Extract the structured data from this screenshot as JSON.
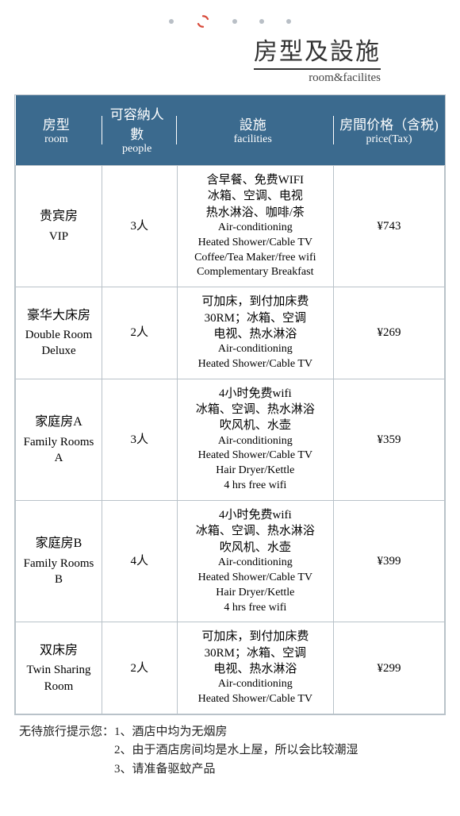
{
  "colors": {
    "header_bg": "#3b6a8e",
    "border": "#b9c2c9",
    "dot": "#b9bfc6",
    "spinner": "#d84a3a",
    "text": "#000000",
    "title": "#333333"
  },
  "title": {
    "cn": "房型及設施",
    "en": "room&facilites"
  },
  "headers": {
    "room": {
      "cn": "房型",
      "en": "room"
    },
    "people": {
      "cn": "可容納人數",
      "en": "people"
    },
    "fac": {
      "cn": "設施",
      "en": "facilities"
    },
    "price": {
      "cn": "房間价格（含税)",
      "en": "price(Tax)"
    }
  },
  "rows": [
    {
      "room_cn": "贵宾房",
      "room_en": "VIP",
      "people": "3人",
      "fac_cn": "含早餐、免费WIFI\n冰箱、空调、电视\n热水淋浴、咖啡/茶",
      "fac_en": "Air-conditioning\nHeated Shower/Cable TV\nCoffee/Tea Maker/free wifi\nComplementary Breakfast",
      "price": "¥743"
    },
    {
      "room_cn": "豪华大床房",
      "room_en": "Double Room Deluxe",
      "people": "2人",
      "fac_cn": "可加床，到付加床费\n30RM；冰箱、空调\n电视、热水淋浴",
      "fac_en": "Air-conditioning\nHeated Shower/Cable TV",
      "price": "¥269"
    },
    {
      "room_cn": "家庭房A",
      "room_en": "Family Rooms A",
      "people": "3人",
      "fac_cn": "4小时免费wifi\n冰箱、空调、热水淋浴\n吹风机、水壶",
      "fac_en": "Air-conditioning\nHeated Shower/Cable TV\nHair Dryer/Kettle\n4 hrs free wifi",
      "price": "¥359"
    },
    {
      "room_cn": "家庭房B",
      "room_en": "Family Rooms B",
      "people": "4人",
      "fac_cn": "4小时免费wifi\n冰箱、空调、热水淋浴\n吹风机、水壶",
      "fac_en": "Air-conditioning\nHeated Shower/Cable TV\nHair Dryer/Kettle\n4 hrs free wifi",
      "price": "¥399"
    },
    {
      "room_cn": "双床房",
      "room_en": "Twin Sharing Room",
      "people": "2人",
      "fac_cn": "可加床，到付加床费\n30RM；冰箱、空调\n电视、热水淋浴",
      "fac_en": "Air-conditioning\nHeated Shower/Cable TV",
      "price": "¥299"
    }
  ],
  "notes": {
    "label": "无待旅行提示您：",
    "items": [
      "1、酒店中均为无烟房",
      "2、由于酒店房间均是水上屋，所以会比较潮湿",
      "3、请准备驱蚊产品"
    ]
  }
}
